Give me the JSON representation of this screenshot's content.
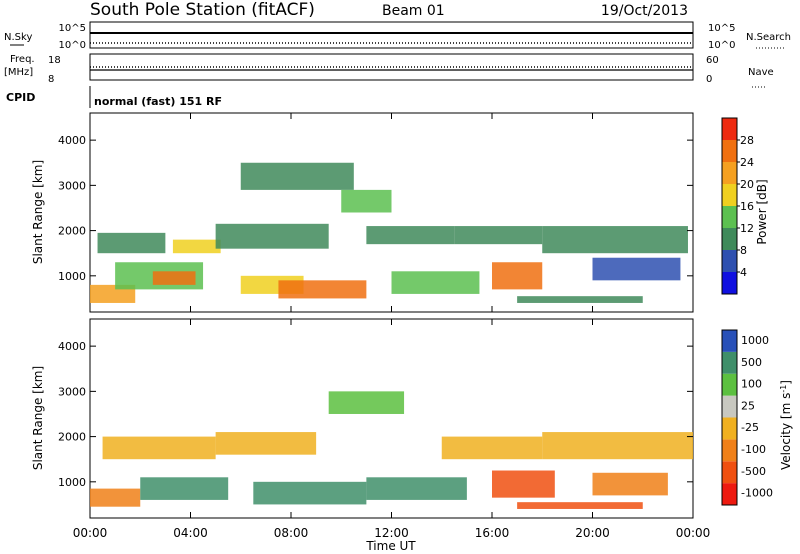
{
  "header": {
    "station": "South Pole Station (fitACF)",
    "beam": "Beam 01",
    "date": "19/Oct/2013"
  },
  "aux_panels": {
    "nsky_label": "N.Sky",
    "nsearch_label": "N.Search",
    "noise_ticks": [
      "10^5",
      "10^0"
    ],
    "freq_label": "Freq.",
    "freq_unit": "[MHz]",
    "freq_ticks": [
      "18",
      "8"
    ],
    "nave_label": "Nave",
    "nave_ticks": [
      "60",
      "0"
    ],
    "cpid_label": "CPID",
    "cpid_value": "normal (fast) 151 RF"
  },
  "x_axis": {
    "label": "Time UT",
    "ticks": [
      "00:00",
      "04:00",
      "08:00",
      "12:00",
      "16:00",
      "20:00",
      "00:00"
    ],
    "tick_hours": [
      0,
      4,
      8,
      12,
      16,
      20,
      24
    ]
  },
  "colors": {
    "power_scale": [
      "#1010e0",
      "#2e50b0",
      "#3f8a5a",
      "#5cc050",
      "#f0d020",
      "#f5a020",
      "#f07010",
      "#ee2a10"
    ],
    "velocity_scale": [
      "#2850b8",
      "#3f8f6a",
      "#5cc040",
      "#c8c8c0",
      "#f0b020",
      "#f08018",
      "#f05010",
      "#ee1a10"
    ]
  },
  "chart_data": [
    {
      "type": "heatmap",
      "name": "power",
      "ylabel": "Slant Range [km]",
      "yticks": [
        1000,
        2000,
        3000,
        4000
      ],
      "ylim": [
        200,
        4600
      ],
      "xlim": [
        0,
        24
      ],
      "colorbar_label": "Power [dB]",
      "colorbar_ticks": [
        4,
        8,
        12,
        16,
        20,
        24,
        28
      ],
      "colorbar_range": [
        0,
        32
      ],
      "regions": [
        {
          "t0": 0.0,
          "t1": 1.8,
          "r0": 400,
          "r1": 800,
          "v": 23
        },
        {
          "t0": 0.3,
          "t1": 3.0,
          "r0": 1500,
          "r1": 1950,
          "v": 10
        },
        {
          "t0": 1.0,
          "t1": 4.5,
          "r0": 700,
          "r1": 1300,
          "v": 14
        },
        {
          "t0": 2.5,
          "t1": 4.2,
          "r0": 800,
          "r1": 1100,
          "v": 25
        },
        {
          "t0": 3.3,
          "t1": 5.2,
          "r0": 1500,
          "r1": 1800,
          "v": 19
        },
        {
          "t0": 5.0,
          "t1": 9.5,
          "r0": 1600,
          "r1": 2150,
          "v": 11
        },
        {
          "t0": 6.0,
          "t1": 8.5,
          "r0": 600,
          "r1": 1000,
          "v": 17
        },
        {
          "t0": 7.5,
          "t1": 11.0,
          "r0": 500,
          "r1": 900,
          "v": 26
        },
        {
          "t0": 6.0,
          "t1": 10.5,
          "r0": 2900,
          "r1": 3500,
          "v": 8
        },
        {
          "t0": 10.0,
          "t1": 12.0,
          "r0": 2400,
          "r1": 2900,
          "v": 13
        },
        {
          "t0": 11.0,
          "t1": 14.5,
          "r0": 1700,
          "r1": 2100,
          "v": 9
        },
        {
          "t0": 12.0,
          "t1": 15.5,
          "r0": 600,
          "r1": 1100,
          "v": 15
        },
        {
          "t0": 14.5,
          "t1": 18.0,
          "r0": 1700,
          "r1": 2100,
          "v": 8
        },
        {
          "t0": 16.0,
          "t1": 18.0,
          "r0": 700,
          "r1": 1300,
          "v": 27
        },
        {
          "t0": 17.0,
          "t1": 22.0,
          "r0": 400,
          "r1": 550,
          "v": 10
        },
        {
          "t0": 18.0,
          "t1": 23.8,
          "r0": 1500,
          "r1": 2100,
          "v": 9
        },
        {
          "t0": 20.0,
          "t1": 23.5,
          "r0": 900,
          "r1": 1400,
          "v": 7
        }
      ]
    },
    {
      "type": "heatmap",
      "name": "velocity",
      "ylabel": "Slant Range [km]",
      "yticks": [
        1000,
        2000,
        3000,
        4000
      ],
      "ylim": [
        200,
        4600
      ],
      "xlim": [
        0,
        24
      ],
      "colorbar_label": "Velocity [m s^-1]",
      "colorbar_ticks": [
        1000,
        500,
        100,
        25,
        -25,
        -100,
        -500,
        -1000
      ],
      "colorbar_classes": [
        "> 1000",
        "500 to 1000",
        "100 to 500",
        "25 to 100",
        "-25 to 25",
        "-100 to -25",
        "-500 to -100",
        "< -500"
      ],
      "regions": [
        {
          "t0": 0.0,
          "t1": 2.0,
          "r0": 450,
          "r1": 850,
          "v": 5
        },
        {
          "t0": 0.5,
          "t1": 5.0,
          "r0": 1500,
          "r1": 2000,
          "v": 4
        },
        {
          "t0": 2.0,
          "t1": 5.5,
          "r0": 600,
          "r1": 1100,
          "v": 1
        },
        {
          "t0": 5.0,
          "t1": 9.0,
          "r0": 1600,
          "r1": 2100,
          "v": 4
        },
        {
          "t0": 6.5,
          "t1": 11.0,
          "r0": 500,
          "r1": 1000,
          "v": 1
        },
        {
          "t0": 9.5,
          "t1": 12.5,
          "r0": 2500,
          "r1": 3000,
          "v": 2
        },
        {
          "t0": 11.0,
          "t1": 15.0,
          "r0": 600,
          "r1": 1100,
          "v": 1
        },
        {
          "t0": 14.0,
          "t1": 18.0,
          "r0": 1500,
          "r1": 2000,
          "v": 4
        },
        {
          "t0": 16.0,
          "t1": 18.5,
          "r0": 650,
          "r1": 1250,
          "v": 6
        },
        {
          "t0": 17.0,
          "t1": 22.0,
          "r0": 400,
          "r1": 550,
          "v": 6
        },
        {
          "t0": 18.0,
          "t1": 24.0,
          "r0": 1500,
          "r1": 2100,
          "v": 4
        },
        {
          "t0": 20.0,
          "t1": 23.0,
          "r0": 700,
          "r1": 1200,
          "v": 5
        }
      ]
    }
  ]
}
